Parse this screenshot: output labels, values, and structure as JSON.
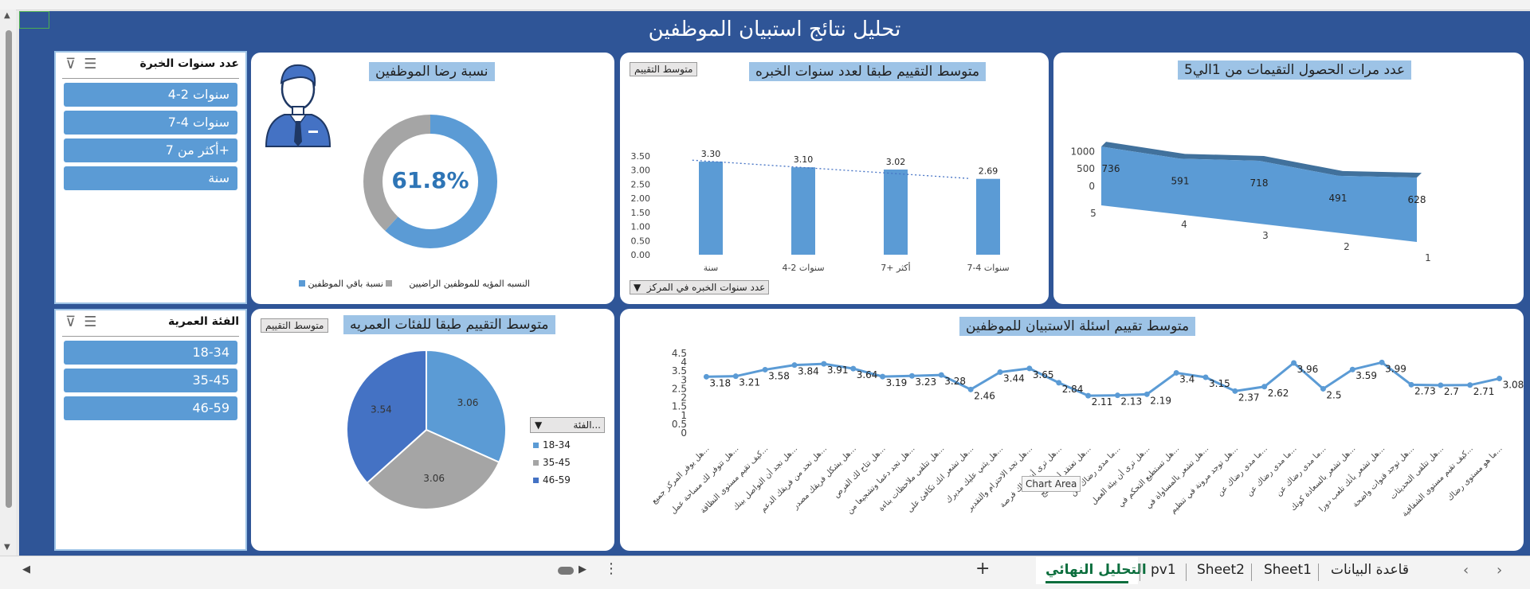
{
  "title": "تحليل نتائج استبيان الموظفين",
  "slicer_experience": {
    "title": "عدد سنوات الخبرة",
    "items": [
      "سنوات 2-4",
      "سنوات 4-7",
      "أكثر من 7+",
      "سنة"
    ]
  },
  "slicer_age": {
    "title": "الفئة العمرية",
    "items": [
      "18-34",
      "35-45",
      "46-59"
    ]
  },
  "satisfaction": {
    "title": "نسبة رضا الموظفين",
    "percent_label": "61.8%",
    "legend_satisfied": "النسبه المؤيه للموظفين الراضيين",
    "legend_other": "نسبة باقي الموظفين",
    "colors": {
      "satisfied": "#5b9bd5",
      "other": "#a5a5a5"
    },
    "chart_data": {
      "type": "pie",
      "categories": [
        "النسبه المؤيه للموظفين الراضيين",
        "نسبة باقي الموظفين"
      ],
      "values": [
        61.8,
        38.2
      ]
    }
  },
  "exp_chart": {
    "title": "متوسط التقييم طبقا لعدد سنوات الخبره",
    "button_label": "متوسط التقييم",
    "filter_label": "عدد سنوات الخبره في المركز",
    "chart_data": {
      "type": "bar",
      "categories": [
        "سنة",
        "سنوات 2-4",
        "أكثر +7",
        "سنوات 4-7"
      ],
      "values": [
        3.3,
        3.1,
        3.02,
        2.69
      ],
      "value_labels": [
        "3.30",
        "3.10",
        "3.02",
        "2.69"
      ],
      "yticks": [
        "0.00",
        "0.50",
        "1.00",
        "1.50",
        "2.00",
        "2.50",
        "3.00",
        "3.50"
      ],
      "ylim": [
        0,
        3.5
      ],
      "trendline": "dotted"
    }
  },
  "ratings_chart": {
    "title": "عدد مرات الحصول التقيمات من 1الي5",
    "chart_data": {
      "type": "area",
      "categories": [
        "5",
        "4",
        "3",
        "2",
        "1"
      ],
      "values": [
        736,
        591,
        718,
        491,
        628
      ],
      "yticks": [
        "0",
        "500",
        "1000"
      ]
    }
  },
  "age_chart": {
    "title": "متوسط التقييم طبقا للفئات العمريه",
    "button_label": "متوسط التقييم",
    "legend_title": "الفئة...",
    "chart_data": {
      "type": "pie",
      "categories": [
        "18-34",
        "35-45",
        "46-59"
      ],
      "values": [
        3.06,
        3.06,
        3.54
      ],
      "value_labels": [
        "3.06",
        "3.06",
        "3.54"
      ],
      "colors": [
        "#5b9bd5",
        "#a5a5a5",
        "#4472c4"
      ]
    }
  },
  "questions_chart": {
    "title": "متوسط تقييم اسئلة الاستبيان للموظفين",
    "tooltip": "Chart Area",
    "chart_data": {
      "type": "line",
      "values": [
        3.18,
        3.21,
        3.58,
        3.84,
        3.91,
        3.64,
        3.19,
        3.23,
        3.28,
        2.46,
        3.44,
        3.65,
        2.84,
        2.11,
        2.13,
        2.19,
        3.4,
        3.15,
        2.37,
        2.62,
        3.96,
        2.5,
        3.59,
        3.99,
        2.73,
        2.7,
        2.71,
        3.08
      ],
      "value_labels": [
        "3.18",
        "3.21",
        "3.58",
        "3.84",
        "3.91",
        "3.64",
        "3.19",
        "3.23",
        "3.28",
        "2.46",
        "3.44",
        "3.65",
        "2.84",
        "2.11",
        "2.13",
        "2.19",
        "3.4",
        "3.15",
        "2.37",
        "2.62",
        "3.96",
        "2.5",
        "3.59",
        "3.99",
        "2.73",
        "2.7",
        "2.71",
        "3.08"
      ],
      "yticks": [
        "0",
        "0.5",
        "1",
        "1.5",
        "2",
        "2.5",
        "3",
        "3.5",
        "4",
        "4.5"
      ],
      "ylim": [
        0,
        4.5
      ],
      "categories": [
        "هل يوفر المركز جميع...",
        "هل تتوفر لك مساحة عمل...",
        "كيف تقيم مستوى النظافة...",
        "هل تجد أن التواصل بينك...",
        "هل تحد من فريقك الدعم...",
        "هل يشكل فريقك مصدر...",
        "هل تتاح لك الفرص...",
        "هل تجد دعما وتشجيعا من...",
        "هل تتلقى ملاحظات بناءة...",
        "هل تشعر انك تكافئ على...",
        "هل يثني عليك مديرك...",
        "هل تجد الاحترام والتقدير...",
        "هل ترى أن هناك فرصة...",
        "هل تعتقد أن برامج...",
        "ما مدى رضاك عن...",
        "هل ترى أن بيئة العمل...",
        "هل تستطيع التحكم في...",
        "هل تشعر بالمساواة في...",
        "هل توجد مرونة في تنظيم...",
        "ما مدى رضاك عن...",
        "ما مدى رضاك عن...",
        "ما مدى رضاك عن...",
        "هل تشعر بالسعادة كونك...",
        "هل تشعر بأنك تلعب دورا...",
        "هل توجد قنوات واضحة...",
        "هل تتلقى التحديثات...",
        "كيف تقيم مستوى الشفافية...",
        "ما هو مستوى رضاك..."
      ]
    }
  },
  "tabs": [
    "التحليل النهائي",
    "pv1",
    "Sheet2",
    "Sheet1",
    "قاعدة البيانات"
  ],
  "add_sheet": "+"
}
